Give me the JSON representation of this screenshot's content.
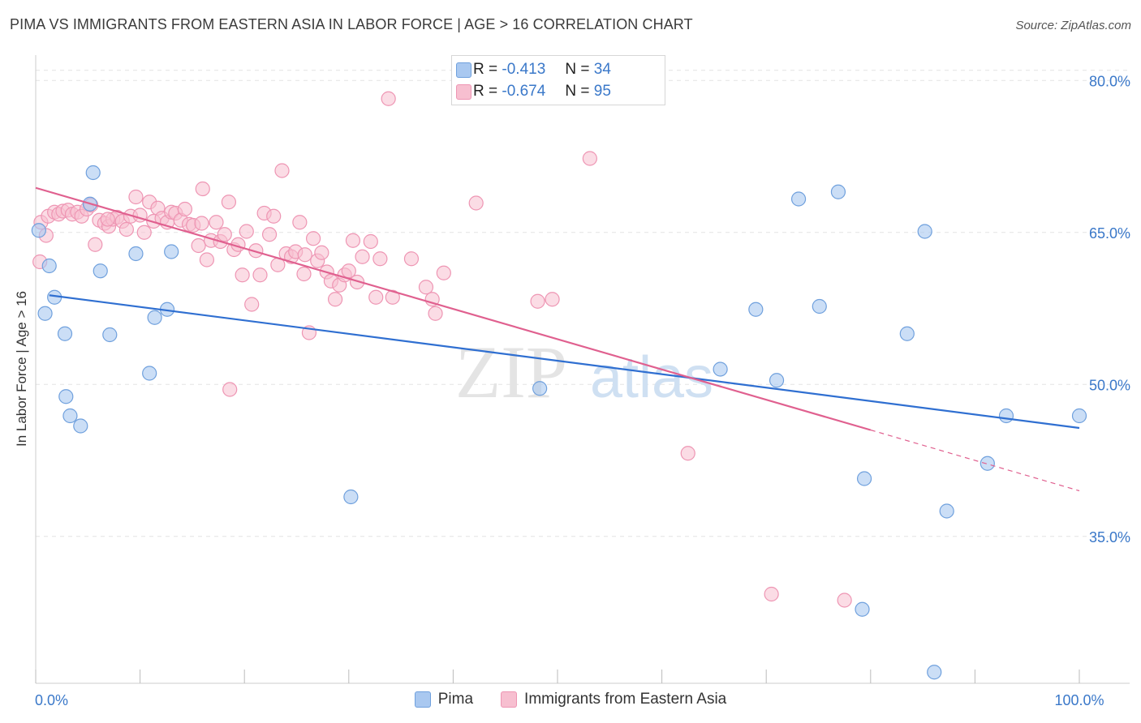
{
  "header": {
    "title": "PIMA VS IMMIGRANTS FROM EASTERN ASIA IN LABOR FORCE | AGE > 16 CORRELATION CHART",
    "source": "Source: ZipAtlas.com"
  },
  "watermark": {
    "zip": "ZIP",
    "atlas": "atlas"
  },
  "stats": [
    {
      "r_label": "R =",
      "r_value": "-0.413",
      "n_label": "N =",
      "n_value": "34"
    },
    {
      "r_label": "R =",
      "r_value": "-0.674",
      "n_label": "N =",
      "n_value": "95"
    }
  ],
  "colors": {
    "pima_fill": "#a9c8f0",
    "pima_stroke": "#6fa0dd",
    "pima_line": "#2f6fd1",
    "eastern_fill": "#f7bfd0",
    "eastern_stroke": "#ee95b3",
    "eastern_line": "#e0608f",
    "grid": "#e3e3e3",
    "tick_label": "#3a78c9"
  },
  "chart_data": {
    "type": "scatter",
    "title": "PIMA VS IMMIGRANTS FROM EASTERN ASIA IN LABOR FORCE | AGE > 16 CORRELATION CHART",
    "xlabel": "",
    "ylabel": "In Labor Force | Age > 16",
    "xlim": [
      0,
      100
    ],
    "ylim": [
      20.5,
      82.5
    ],
    "x_tick_labels": [
      {
        "value": 0,
        "label": "0.0%"
      },
      {
        "value": 100,
        "label": "100.0%"
      }
    ],
    "y_tick_labels": [
      {
        "value": 80,
        "label": "80.0%"
      },
      {
        "value": 65,
        "label": "65.0%"
      },
      {
        "value": 50,
        "label": "50.0%"
      },
      {
        "value": 35,
        "label": "35.0%"
      }
    ],
    "grid": true,
    "legend_position": "bottom-center",
    "series": [
      {
        "name": "Pima",
        "trend": {
          "x0": 1.3,
          "y0": 58.8,
          "x1": 100,
          "y1": 45.7
        },
        "points": [
          [
            0.3,
            65.2
          ],
          [
            0.9,
            57.0
          ],
          [
            1.3,
            61.7
          ],
          [
            1.8,
            58.6
          ],
          [
            2.8,
            55.0
          ],
          [
            2.9,
            48.8
          ],
          [
            3.3,
            46.9
          ],
          [
            4.3,
            45.9
          ],
          [
            5.2,
            67.8
          ],
          [
            5.5,
            70.9
          ],
          [
            6.2,
            61.2
          ],
          [
            7.1,
            54.9
          ],
          [
            9.6,
            62.9
          ],
          [
            10.9,
            51.1
          ],
          [
            11.4,
            56.6
          ],
          [
            12.6,
            57.4
          ],
          [
            13.0,
            63.1
          ],
          [
            30.2,
            38.9
          ],
          [
            48.3,
            49.6
          ],
          [
            65.6,
            51.5
          ],
          [
            69.0,
            57.4
          ],
          [
            71.0,
            50.4
          ],
          [
            73.1,
            68.3
          ],
          [
            75.1,
            57.7
          ],
          [
            76.9,
            69.0
          ],
          [
            79.4,
            40.7
          ],
          [
            79.2,
            27.8
          ],
          [
            83.5,
            55.0
          ],
          [
            85.2,
            65.1
          ],
          [
            86.1,
            21.6
          ],
          [
            87.3,
            37.5
          ],
          [
            91.2,
            42.2
          ],
          [
            100.0,
            46.9
          ],
          [
            93.0,
            46.9
          ]
        ]
      },
      {
        "name": "Immigrants from Eastern Asia",
        "trend": {
          "x0": 0,
          "y0": 69.4,
          "x1": 80,
          "y1": 45.5,
          "dash_x1": 100,
          "dash_y1": 39.5
        },
        "points": [
          [
            0.5,
            66.0
          ],
          [
            1.2,
            66.6
          ],
          [
            1.8,
            67.0
          ],
          [
            2.2,
            66.8
          ],
          [
            2.6,
            67.1
          ],
          [
            3.1,
            67.2
          ],
          [
            3.5,
            66.8
          ],
          [
            4.0,
            67.0
          ],
          [
            4.4,
            66.6
          ],
          [
            4.9,
            67.3
          ],
          [
            5.3,
            67.7
          ],
          [
            5.7,
            63.8
          ],
          [
            6.1,
            66.2
          ],
          [
            6.6,
            65.9
          ],
          [
            7.0,
            65.6
          ],
          [
            7.4,
            66.3
          ],
          [
            7.8,
            66.5
          ],
          [
            8.3,
            66.1
          ],
          [
            8.7,
            65.3
          ],
          [
            9.1,
            66.6
          ],
          [
            9.6,
            68.5
          ],
          [
            10.0,
            66.7
          ],
          [
            10.4,
            65.0
          ],
          [
            10.9,
            68.0
          ],
          [
            11.3,
            66.1
          ],
          [
            11.7,
            67.4
          ],
          [
            12.1,
            66.4
          ],
          [
            12.6,
            66.0
          ],
          [
            13.0,
            67.0
          ],
          [
            13.4,
            66.9
          ],
          [
            13.9,
            66.2
          ],
          [
            14.3,
            67.3
          ],
          [
            14.7,
            65.8
          ],
          [
            15.1,
            65.7
          ],
          [
            15.6,
            63.7
          ],
          [
            16.0,
            69.3
          ],
          [
            16.4,
            62.3
          ],
          [
            16.8,
            64.2
          ],
          [
            17.3,
            66.0
          ],
          [
            17.7,
            64.1
          ],
          [
            18.1,
            64.8
          ],
          [
            18.5,
            68.0
          ],
          [
            19.0,
            63.3
          ],
          [
            19.4,
            63.8
          ],
          [
            19.8,
            60.8
          ],
          [
            20.2,
            65.1
          ],
          [
            20.7,
            57.9
          ],
          [
            21.1,
            63.2
          ],
          [
            21.5,
            60.8
          ],
          [
            21.9,
            66.9
          ],
          [
            22.4,
            64.8
          ],
          [
            22.8,
            66.6
          ],
          [
            23.2,
            61.8
          ],
          [
            23.6,
            71.1
          ],
          [
            24.0,
            62.9
          ],
          [
            24.5,
            62.6
          ],
          [
            24.9,
            63.1
          ],
          [
            25.3,
            66.0
          ],
          [
            25.7,
            60.9
          ],
          [
            26.2,
            55.1
          ],
          [
            26.6,
            64.4
          ],
          [
            27.0,
            62.2
          ],
          [
            27.4,
            63.0
          ],
          [
            27.9,
            61.1
          ],
          [
            28.3,
            60.2
          ],
          [
            28.7,
            58.4
          ],
          [
            29.1,
            59.8
          ],
          [
            29.6,
            60.8
          ],
          [
            30.0,
            61.2
          ],
          [
            30.4,
            64.2
          ],
          [
            30.8,
            60.1
          ],
          [
            31.3,
            62.6
          ],
          [
            32.1,
            64.1
          ],
          [
            32.6,
            58.6
          ],
          [
            33.0,
            62.4
          ],
          [
            33.8,
            78.2
          ],
          [
            34.2,
            58.6
          ],
          [
            36.0,
            62.4
          ],
          [
            37.4,
            59.6
          ],
          [
            38.0,
            58.4
          ],
          [
            38.3,
            57.0
          ],
          [
            39.1,
            61.0
          ],
          [
            42.2,
            67.9
          ],
          [
            48.1,
            58.2
          ],
          [
            49.5,
            58.4
          ],
          [
            53.1,
            72.3
          ],
          [
            62.5,
            43.2
          ],
          [
            70.5,
            29.3
          ],
          [
            77.5,
            28.7
          ],
          [
            1.0,
            64.7
          ],
          [
            0.4,
            62.1
          ],
          [
            18.6,
            49.5
          ],
          [
            15.9,
            65.9
          ],
          [
            25.8,
            62.8
          ],
          [
            6.9,
            66.3
          ]
        ]
      }
    ]
  },
  "legend": {
    "items": [
      {
        "label": "Pima"
      },
      {
        "label": "Immigrants from Eastern Asia"
      }
    ]
  }
}
